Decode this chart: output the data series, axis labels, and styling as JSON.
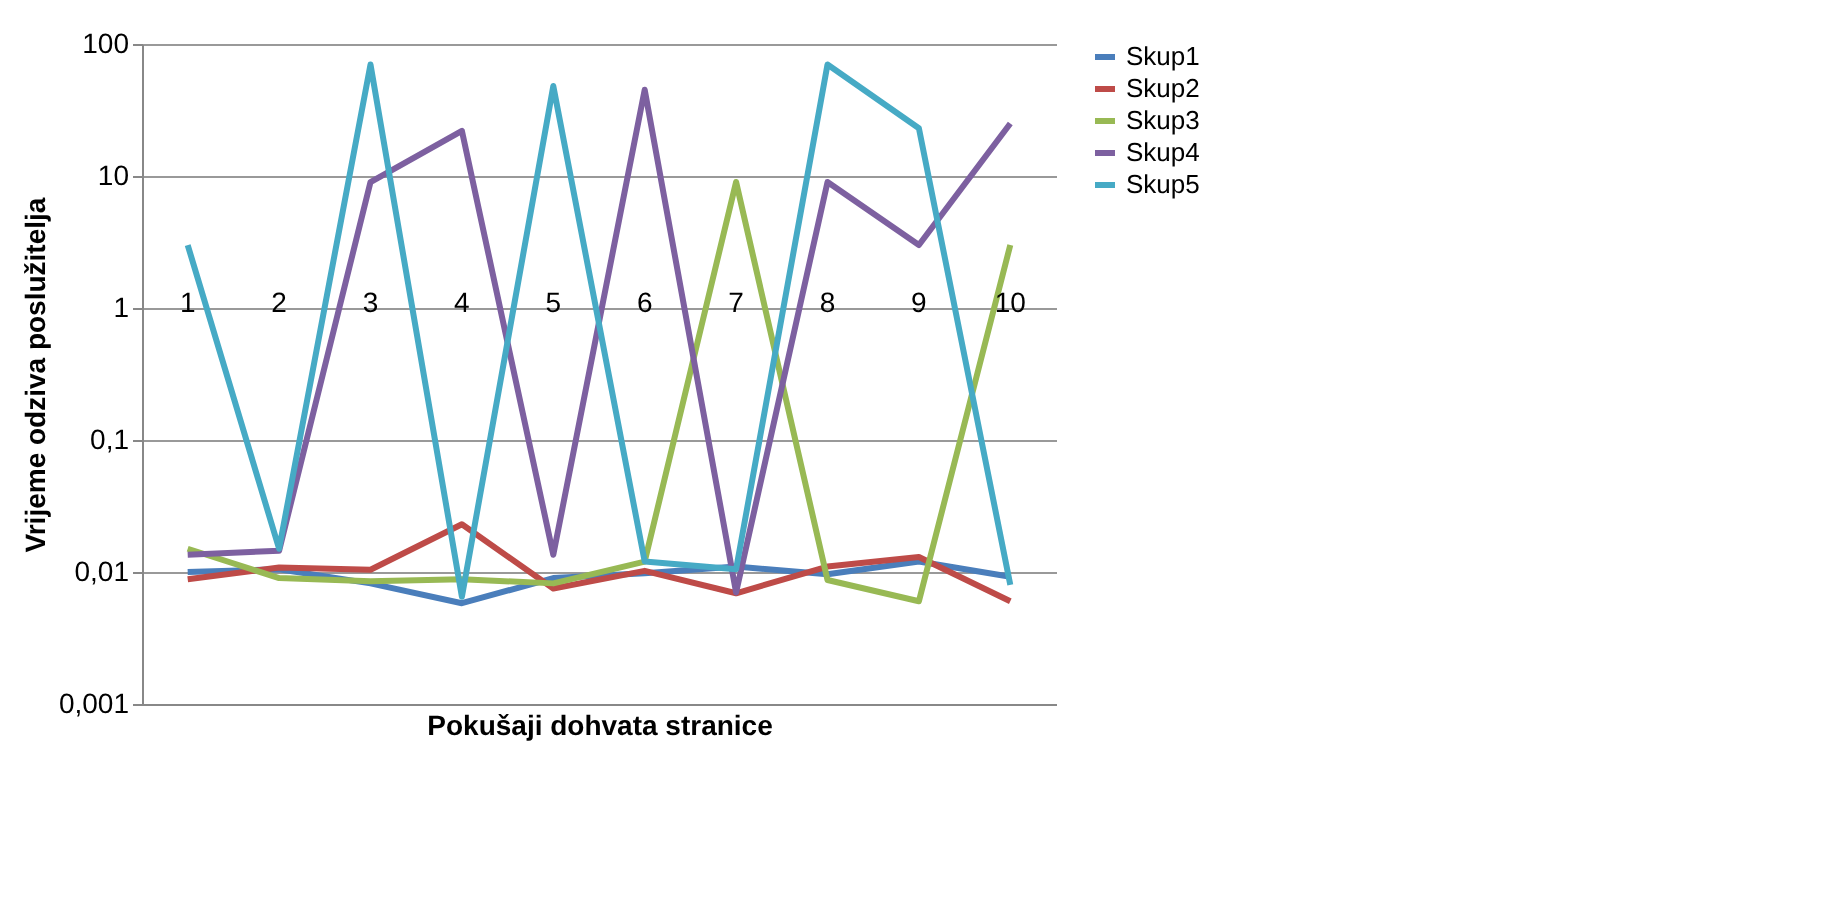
{
  "chart_data": {
    "type": "line",
    "xlabel": "Pokušaji dohvata stranice",
    "ylabel": "Vrijeme odziva poslužitelja",
    "categories": [
      "1",
      "2",
      "3",
      "4",
      "5",
      "6",
      "7",
      "8",
      "9",
      "10"
    ],
    "series": [
      {
        "name": "Skup1",
        "color": "#4a7ebb",
        "values": [
          0.01,
          0.0105,
          0.0082,
          0.0058,
          0.009,
          0.0098,
          0.011,
          0.0096,
          0.012,
          0.0092
        ]
      },
      {
        "name": "Skup2",
        "color": "#be4b48",
        "values": [
          0.0088,
          0.0108,
          0.0104,
          0.023,
          0.0075,
          0.0102,
          0.0069,
          0.011,
          0.013,
          0.006
        ]
      },
      {
        "name": "Skup3",
        "color": "#98b954",
        "values": [
          0.015,
          0.009,
          0.0085,
          0.0088,
          0.0082,
          0.012,
          9,
          0.0087,
          0.006,
          3
        ]
      },
      {
        "name": "Skup4",
        "color": "#7d60a0",
        "values": [
          0.0135,
          0.0145,
          9,
          22,
          0.0135,
          45,
          0.007,
          9,
          3,
          25
        ]
      },
      {
        "name": "Skup5",
        "color": "#46aac5",
        "values": [
          3,
          0.015,
          70,
          0.0065,
          48,
          0.012,
          0.0105,
          70,
          23,
          0.008
        ]
      }
    ],
    "log": true,
    "ylim": [
      0.001,
      100
    ],
    "yticks": [
      {
        "value": 0.001,
        "label": "0,001"
      },
      {
        "value": 0.01,
        "label": "0,01"
      },
      {
        "value": 0.1,
        "label": "0,1"
      },
      1,
      10,
      100
    ],
    "grid": "y",
    "legend": "right",
    "marker": "none",
    "line_style": "solid"
  }
}
